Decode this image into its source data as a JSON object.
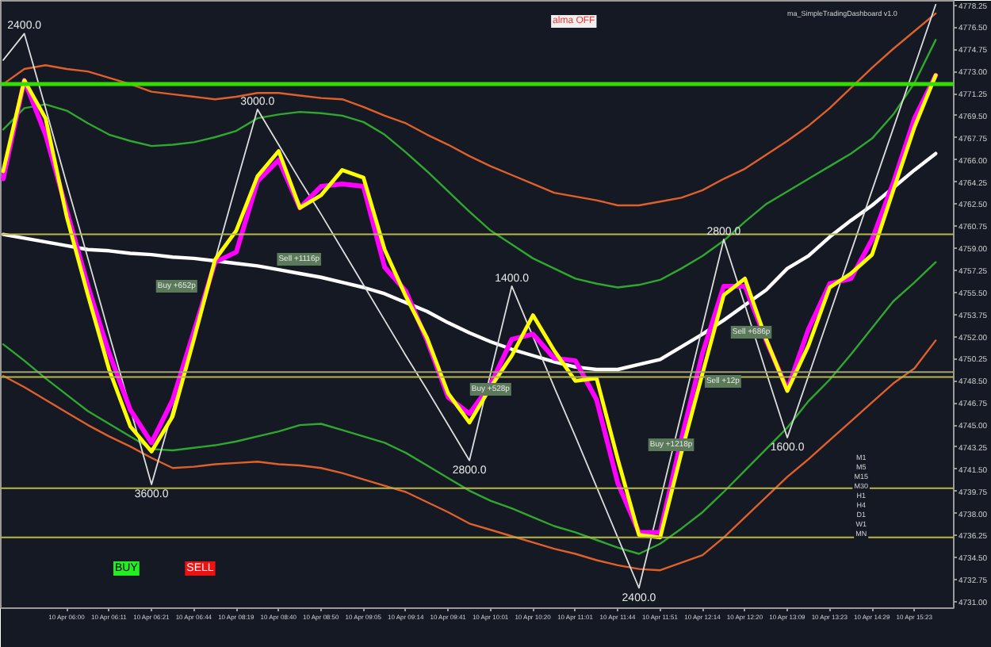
{
  "chart_data": {
    "type": "line",
    "categories": [
      null,
      null,
      null,
      "10 Apr 06:00",
      null,
      "10 Apr 06:11",
      null,
      "10 Apr 06:21",
      null,
      "10 Apr 06:44",
      null,
      "10 Apr 08:19",
      null,
      "10 Apr 08:40",
      null,
      "10 Apr 08:50",
      null,
      "10 Apr 09:05",
      null,
      "10 Apr 09:14",
      null,
      "10 Apr 09:41",
      null,
      "10 Apr 10:01",
      null,
      "10 Apr 10:20",
      null,
      "10 Apr 11:01",
      null,
      "10 Apr 11:44",
      null,
      "10 Apr 11:51",
      null,
      "10 Apr 12:14",
      null,
      "10 Apr 12:20",
      null,
      "10 Apr 13:09",
      null,
      "10 Apr 13:23",
      null,
      "10 Apr 14:29",
      null,
      "10 Apr 15:23",
      null
    ],
    "ylim": [
      4730.5,
      4778.6
    ],
    "yticks": [
      {
        "value": 4731.0,
        "label": "4731.00"
      },
      {
        "value": 4732.75,
        "label": "4732.75"
      },
      {
        "value": 4734.5,
        "label": "4734.50"
      },
      {
        "value": 4736.25,
        "label": "4736.25"
      },
      {
        "value": 4738.0,
        "label": "4738.00"
      },
      {
        "value": 4739.75,
        "label": "4739.75"
      },
      {
        "value": 4741.5,
        "label": "4741.50"
      },
      {
        "value": 4743.25,
        "label": "4743.25"
      },
      {
        "value": 4745.0,
        "label": "4745.00"
      },
      {
        "value": 4746.75,
        "label": "4746.75"
      },
      {
        "value": 4748.5,
        "label": "4748.50"
      },
      {
        "value": 4750.25,
        "label": "4750.25"
      },
      {
        "value": 4752.0,
        "label": "4752.00"
      },
      {
        "value": 4753.75,
        "label": "4753.75"
      },
      {
        "value": 4755.5,
        "label": "4755.50"
      },
      {
        "value": 4757.25,
        "label": "4757.25"
      },
      {
        "value": 4759.0,
        "label": "4759.00"
      },
      {
        "value": 4760.75,
        "label": "4760.75"
      },
      {
        "value": 4762.5,
        "label": "4762.50"
      },
      {
        "value": 4764.25,
        "label": "4764.25"
      },
      {
        "value": 4766.0,
        "label": "4766.00"
      },
      {
        "value": 4767.75,
        "label": "4767.75"
      },
      {
        "value": 4769.5,
        "label": "4769.50"
      },
      {
        "value": 4771.25,
        "label": "4771.25"
      },
      {
        "value": 4773.0,
        "label": "4773.00"
      },
      {
        "value": 4774.75,
        "label": "4774.75"
      },
      {
        "value": 4776.5,
        "label": "4776.50"
      },
      {
        "value": 4778.25,
        "label": "4778.25"
      }
    ],
    "ref_lines": [
      {
        "axis": "y",
        "value": 4772.0,
        "color": "#33dd00"
      },
      {
        "axis": "y",
        "value": 4760.1,
        "color": "#b8b84a"
      },
      {
        "axis": "y",
        "value": 4749.2,
        "color": "#a0a070"
      },
      {
        "axis": "y",
        "value": 4748.8,
        "color": "#b8b84a"
      },
      {
        "axis": "y",
        "value": 4740.0,
        "color": "#b8b84a"
      },
      {
        "axis": "y",
        "value": 4736.1,
        "color": "#b8b84a"
      }
    ],
    "series": [
      {
        "color": "#e0602a",
        "values": [
          4772.0,
          4773.2,
          4773.5,
          4773.2,
          4773.0,
          4772.5,
          4772.0,
          4771.4,
          4771.2,
          4771.0,
          4770.8,
          4771.0,
          4771.3,
          4771.3,
          4771.1,
          4770.9,
          4770.8,
          4770.2,
          4769.5,
          4768.9,
          4768.0,
          4767.2,
          4766.3,
          4765.5,
          4764.8,
          4764.1,
          4763.4,
          4763.1,
          4762.8,
          4762.4,
          4762.4,
          4762.7,
          4763.0,
          4763.6,
          4764.5,
          4765.3,
          4766.4,
          4767.5,
          4768.7,
          4770.1,
          4771.7,
          4773.3,
          4774.8,
          4776.2,
          4777.6
        ]
      },
      {
        "color": "#e0602a",
        "values": [
          4748.9,
          4748.0,
          4747.0,
          4746.0,
          4745.0,
          4744.1,
          4743.3,
          4742.4,
          4741.6,
          4741.7,
          4741.9,
          4742.0,
          4742.1,
          4741.9,
          4741.8,
          4741.6,
          4741.2,
          4740.7,
          4740.2,
          4739.7,
          4738.9,
          4738.1,
          4737.2,
          4736.7,
          4736.2,
          4735.7,
          4735.2,
          4734.8,
          4734.3,
          4733.9,
          4733.6,
          4733.5,
          4734.1,
          4734.7,
          4736.1,
          4737.7,
          4739.3,
          4740.9,
          4742.3,
          4743.8,
          4745.3,
          4746.8,
          4748.3,
          4749.5,
          4751.7
        ]
      },
      {
        "color": "#2fa82f",
        "values": [
          4768.4,
          4770.1,
          4770.4,
          4769.9,
          4768.9,
          4768.0,
          4767.5,
          4767.1,
          4767.2,
          4767.4,
          4767.8,
          4768.3,
          4769.3,
          4769.6,
          4769.8,
          4769.7,
          4769.5,
          4769.0,
          4768.0,
          4766.6,
          4765.1,
          4763.5,
          4761.9,
          4760.4,
          4759.3,
          4758.2,
          4757.4,
          4756.6,
          4756.2,
          4755.9,
          4756.1,
          4756.5,
          4757.4,
          4758.4,
          4759.6,
          4761.1,
          4762.5,
          4763.5,
          4764.5,
          4765.5,
          4766.5,
          4767.7,
          4769.6,
          4772.1,
          4775.5
        ]
      },
      {
        "color": "#2fa82f",
        "values": [
          4751.4,
          4750.1,
          4748.7,
          4747.4,
          4746.1,
          4745.1,
          4744.1,
          4743.1,
          4743.0,
          4743.2,
          4743.4,
          4743.7,
          4744.1,
          4744.5,
          4745.0,
          4745.1,
          4744.6,
          4744.1,
          4743.6,
          4742.8,
          4741.8,
          4740.8,
          4739.8,
          4739.0,
          4738.4,
          4737.7,
          4737.0,
          4736.5,
          4735.9,
          4735.3,
          4734.8,
          4735.6,
          4736.8,
          4738.1,
          4739.7,
          4741.4,
          4743.1,
          4744.8,
          4746.9,
          4748.6,
          4750.6,
          4752.7,
          4754.8,
          4756.3,
          4757.9
        ]
      },
      {
        "color": "#ffffff",
        "values": [
          4760.1,
          4759.8,
          4759.5,
          4759.2,
          4758.9,
          4758.8,
          4758.6,
          4758.5,
          4758.3,
          4758.2,
          4758.0,
          4757.8,
          4757.6,
          4757.3,
          4757.0,
          4756.7,
          4756.3,
          4755.9,
          4755.4,
          4754.7,
          4754.0,
          4753.1,
          4752.3,
          4751.6,
          4751.0,
          4750.5,
          4750.0,
          4749.6,
          4749.4,
          4749.4,
          4749.8,
          4750.2,
          4751.2,
          4752.2,
          4753.3,
          4754.5,
          4755.7,
          4757.4,
          4758.4,
          4759.9,
          4761.2,
          4762.4,
          4763.8,
          4765.2,
          4766.5
        ]
      },
      {
        "color": "#dddddd",
        "values": [
          4773.9,
          4776.0,
          4770.1,
          4764.1,
          4758.2,
          4752.2,
          4746.3,
          4740.3,
          4746.2,
          4752.2,
          4758.1,
          4764.1,
          4770.0,
          4767.2,
          4764.4,
          4761.7,
          4758.9,
          4756.1,
          4753.3,
          4750.5,
          4747.8,
          4745.0,
          4742.2,
          4749.1,
          4756.0,
          4752.0,
          4748.0,
          4744.1,
          4740.1,
          4736.1,
          4732.1,
          4739.0,
          4745.9,
          4752.8,
          4759.7,
          4754.5,
          4749.2,
          4744.0,
          4748.9,
          4753.8,
          4758.7,
          4763.6,
          4768.5,
          4773.4,
          4778.3
        ]
      },
      {
        "color": "#ff00ff",
        "values": [
          4764.5,
          4772.3,
          4768.0,
          4762.0,
          4756.0,
          4750.7,
          4746.2,
          4743.6,
          4747.0,
          4752.4,
          4757.9,
          4758.7,
          4764.3,
          4766.0,
          4762.2,
          4763.9,
          4764.1,
          4763.9,
          4757.5,
          4755.6,
          4751.7,
          4747.2,
          4745.9,
          4748.2,
          4751.8,
          4752.2,
          4750.3,
          4750.1,
          4747.0,
          4740.4,
          4736.5,
          4736.5,
          4743.9,
          4750.7,
          4756.0,
          4756.0,
          4751.7,
          4747.8,
          4752.6,
          4756.2,
          4756.6,
          4759.7,
          4764.2,
          4769.3,
          4772.7
        ]
      },
      {
        "color": "#ffff00",
        "values": [
          4765.1,
          4772.3,
          4769.3,
          4761.5,
          4755.3,
          4749.4,
          4744.9,
          4742.9,
          4745.7,
          4751.8,
          4758.1,
          4760.4,
          4764.7,
          4766.7,
          4762.2,
          4763.2,
          4765.2,
          4764.6,
          4758.9,
          4755.2,
          4751.9,
          4747.5,
          4745.2,
          4748.0,
          4750.5,
          4753.7,
          4750.9,
          4748.5,
          4748.7,
          4742.3,
          4736.3,
          4736.1,
          4742.8,
          4749.1,
          4755.3,
          4756.6,
          4751.8,
          4747.7,
          4751.3,
          4755.9,
          4757.0,
          4758.5,
          4763.6,
          4768.6,
          4772.7
        ]
      }
    ],
    "annotations": [
      {
        "text": "2400.0",
        "y": 4776.0
      },
      {
        "text": "3600.0",
        "y": 4740.3
      },
      {
        "text": "3000.0",
        "y": 4770.0
      },
      {
        "text": "2800.0",
        "y": 4742.2
      },
      {
        "text": "1400.0",
        "y": 4756.0
      },
      {
        "text": "2400.0",
        "y": 4732.1
      },
      {
        "text": "2800.0",
        "y": 4759.7
      },
      {
        "text": "1600.0",
        "y": 4744.0
      },
      "Buy +652p",
      "Sell +1116p",
      "Buy +528p",
      "Buy +1218p",
      "Sell +686p",
      "Sell +12p",
      "alma OFF",
      "BUY",
      "SELL",
      "ma_SimpleTradingDashboard v1.0",
      "M1",
      "M5",
      "M15",
      "M30",
      "H1",
      "H4",
      "D1",
      "W1",
      "MN"
    ]
  }
}
